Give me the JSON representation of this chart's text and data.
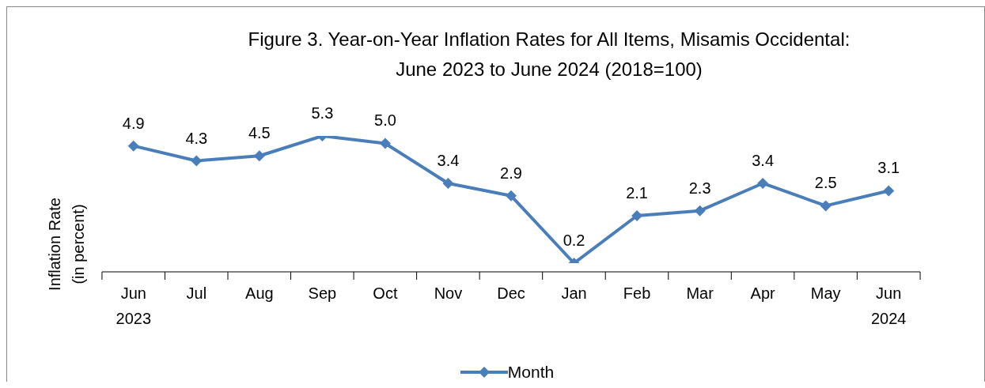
{
  "chart_data": {
    "type": "line",
    "title": "Figure 3. Year-on-Year Inflation Rates for All Items, Misamis Occidental:\nJune 2023 to June 2024 (2018=100)",
    "ylabel": "Inflation Rate\n(in percent)",
    "categories": [
      "Jun\n2023",
      "Jul",
      "Aug",
      "Sep",
      "Oct",
      "Nov",
      "Dec",
      "Jan",
      "Feb",
      "Mar",
      "Apr",
      "May",
      "Jun\n2024"
    ],
    "series": [
      {
        "name": "Month",
        "color": "#4a7ebb",
        "values": [
          4.9,
          4.3,
          4.5,
          5.3,
          5.0,
          3.4,
          2.9,
          0.2,
          2.1,
          2.3,
          3.4,
          2.5,
          3.1
        ],
        "value_labels": [
          "4.9",
          "4.3",
          "4.5",
          "5.3",
          "5.0",
          "3.4",
          "2.9",
          "0.2",
          "2.1",
          "2.3",
          "3.4",
          "2.5",
          "3.1"
        ]
      }
    ],
    "tick_labels": "x",
    "legend": "bottom",
    "marker": "diamond",
    "line_style": "solid",
    "grid": false
  }
}
